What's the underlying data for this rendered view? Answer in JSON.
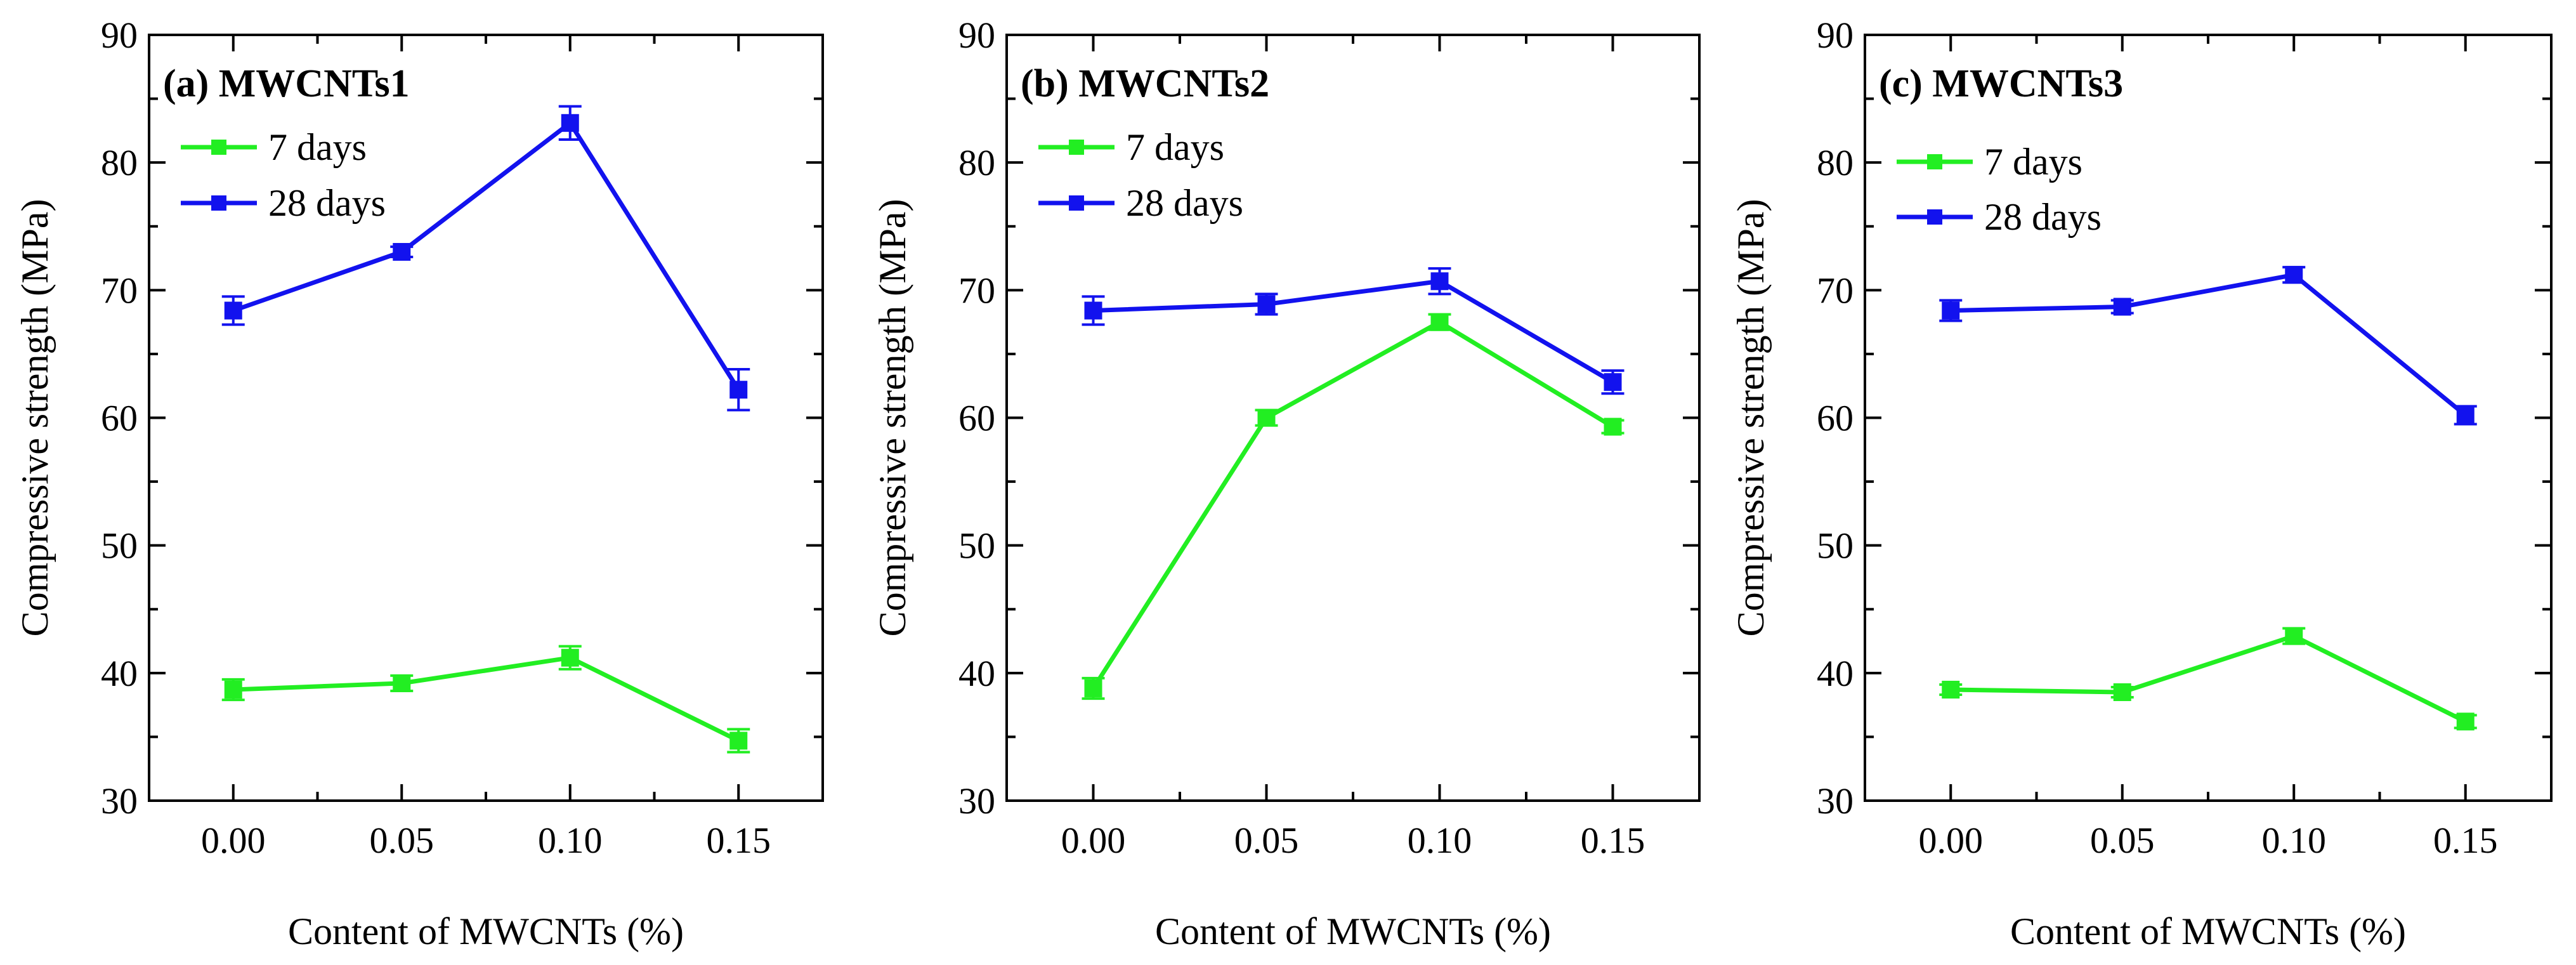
{
  "chart_data": [
    {
      "type": "line",
      "title": "(a) MWCNTs1",
      "xlabel": "Content of MWCNTs (%)",
      "ylabel": "Compressive strength (MPa)",
      "x": [
        0.0,
        0.05,
        0.1,
        0.15
      ],
      "x_tick_labels": [
        "0.00",
        "0.05",
        "0.10",
        "0.15"
      ],
      "xlim": [
        -0.025,
        0.175
      ],
      "ylim": [
        30,
        90
      ],
      "y_ticks": [
        30,
        40,
        50,
        60,
        70,
        80,
        90
      ],
      "legend_position": "top-left",
      "series": [
        {
          "name": "7 days",
          "color": "#22ee22",
          "values": [
            38.7,
            39.2,
            41.2,
            34.7
          ],
          "errors": [
            0.8,
            0.6,
            0.9,
            0.9
          ]
        },
        {
          "name": "28 days",
          "color": "#1212ee",
          "values": [
            68.4,
            73.0,
            83.1,
            62.2
          ],
          "errors": [
            1.1,
            0.4,
            1.3,
            1.6
          ]
        }
      ]
    },
    {
      "type": "line",
      "title": "(b) MWCNTs2",
      "xlabel": "Content of MWCNTs (%)",
      "ylabel": "Compressive strength (MPa)",
      "x": [
        0.0,
        0.05,
        0.1,
        0.15
      ],
      "x_tick_labels": [
        "0.00",
        "0.05",
        "0.10",
        "0.15"
      ],
      "xlim": [
        -0.025,
        0.175
      ],
      "ylim": [
        30,
        90
      ],
      "y_ticks": [
        30,
        40,
        50,
        60,
        70,
        80,
        90
      ],
      "legend_position": "top-left",
      "series": [
        {
          "name": "7 days",
          "color": "#22ee22",
          "values": [
            38.8,
            60.0,
            67.5,
            59.3
          ],
          "errors": [
            0.8,
            0.6,
            0.6,
            0.5
          ]
        },
        {
          "name": "28 days",
          "color": "#1212ee",
          "values": [
            68.4,
            68.9,
            70.7,
            62.8
          ],
          "errors": [
            1.1,
            0.8,
            1.0,
            0.9
          ]
        }
      ]
    },
    {
      "type": "line",
      "title": "(c) MWCNTs3",
      "xlabel": "Content of MWCNTs (%)",
      "ylabel": "Compressive strength (MPa)",
      "x": [
        0.0,
        0.05,
        0.1,
        0.15
      ],
      "x_tick_labels": [
        "0.00",
        "0.05",
        "0.10",
        "0.15"
      ],
      "xlim": [
        -0.025,
        0.175
      ],
      "ylim": [
        30,
        90
      ],
      "y_ticks": [
        30,
        40,
        50,
        60,
        70,
        80,
        90
      ],
      "legend_position": "top-left",
      "series": [
        {
          "name": "7 days",
          "color": "#22ee22",
          "values": [
            38.7,
            38.5,
            42.9,
            36.2
          ],
          "errors": [
            0.4,
            0.4,
            0.6,
            0.5
          ]
        },
        {
          "name": "28 days",
          "color": "#1212ee",
          "values": [
            68.4,
            68.7,
            71.2,
            60.2
          ],
          "errors": [
            0.8,
            0.5,
            0.6,
            0.7
          ]
        }
      ]
    }
  ]
}
